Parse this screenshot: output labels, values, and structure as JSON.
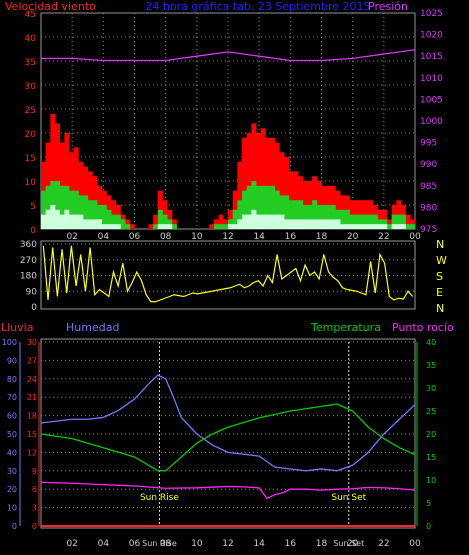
{
  "chart_data": [
    {
      "type": "bar",
      "title": "24 hora gráfica tab.  23 Septiembre 2015",
      "left_label": "Velocidad viento",
      "right_label": "Presión",
      "x_ticks": [
        "02",
        "04",
        "06",
        "08",
        "10",
        "12",
        "14",
        "16",
        "18",
        "20",
        "22",
        "00"
      ],
      "y_left_ticks": [
        "0",
        "5",
        "10",
        "15",
        "20",
        "25",
        "30",
        "35",
        "40",
        "45"
      ],
      "y_right_ticks": [
        "975",
        "980",
        "985",
        "990",
        "995",
        "1000",
        "1005",
        "1010",
        "1015",
        "1020",
        "1025"
      ],
      "ylim_left": [
        0,
        45
      ],
      "ylim_right": [
        975,
        1025
      ],
      "series": [
        {
          "role": "gust",
          "color": "#ff0000",
          "values": [
            14,
            18,
            24,
            22,
            18,
            20,
            16,
            17,
            14,
            13,
            12,
            11,
            9,
            8,
            7,
            6,
            5,
            3,
            2,
            1,
            0,
            0,
            0,
            1,
            3,
            8,
            6,
            4,
            2,
            0,
            0,
            0,
            0,
            0,
            0,
            0,
            1,
            2,
            3,
            2,
            4,
            8,
            14,
            19,
            20,
            22,
            20,
            21,
            19,
            19,
            18,
            16,
            15,
            12,
            12,
            11,
            10,
            10,
            11,
            10,
            9,
            9,
            9,
            8,
            7,
            7,
            6,
            6,
            6,
            6,
            6,
            5,
            4,
            4,
            2,
            5,
            6,
            5,
            3,
            2
          ]
        },
        {
          "role": "average",
          "color": "#22cc22",
          "values": [
            8,
            9,
            10,
            10,
            9,
            9,
            8,
            8,
            7,
            7,
            6,
            6,
            5,
            5,
            4,
            3,
            3,
            2,
            1,
            0,
            0,
            0,
            0,
            0,
            1,
            4,
            3,
            2,
            1,
            0,
            0,
            0,
            0,
            0,
            0,
            0,
            0,
            1,
            1,
            1,
            2,
            4,
            6,
            8,
            9,
            10,
            9,
            9,
            9,
            9,
            8,
            7,
            7,
            6,
            6,
            6,
            5,
            5,
            6,
            5,
            5,
            5,
            5,
            4,
            4,
            4,
            3,
            3,
            3,
            3,
            3,
            3,
            2,
            2,
            1,
            3,
            3,
            3,
            1,
            1
          ]
        },
        {
          "role": "base",
          "color": "#ccffdd",
          "values": [
            3,
            4,
            5,
            4,
            3,
            4,
            3,
            3,
            3,
            2,
            2,
            2,
            2,
            1,
            1,
            1,
            1,
            0,
            0,
            0,
            0,
            0,
            0,
            0,
            0,
            1,
            1,
            1,
            0,
            0,
            0,
            0,
            0,
            0,
            0,
            0,
            0,
            0,
            0,
            0,
            1,
            1,
            2,
            3,
            3,
            4,
            3,
            3,
            3,
            3,
            3,
            3,
            2,
            2,
            2,
            2,
            2,
            2,
            2,
            2,
            2,
            2,
            2,
            2,
            1,
            1,
            1,
            1,
            1,
            1,
            1,
            1,
            1,
            1,
            0,
            1,
            1,
            1,
            0,
            0
          ]
        },
        {
          "role": "pressure",
          "color": "#dd33ff",
          "axis": "right",
          "x": [
            0,
            2,
            4,
            6,
            8,
            10,
            12,
            14,
            16,
            18,
            20,
            22,
            24
          ],
          "values": [
            1014.5,
            1014.5,
            1014,
            1014,
            1014,
            1015,
            1016,
            1015,
            1014,
            1014,
            1014.5,
            1015.5,
            1016.5
          ]
        }
      ]
    },
    {
      "type": "line",
      "right_labels": [
        "N",
        "W",
        "S",
        "E",
        "N"
      ],
      "y_ticks": [
        "0",
        "90",
        "180",
        "270",
        "360"
      ],
      "ylim": [
        0,
        360
      ],
      "series": [
        {
          "role": "direction",
          "color": "#ffff00",
          "values": [
            350,
            40,
            340,
            60,
            330,
            80,
            350,
            120,
            300,
            90,
            340,
            70,
            100,
            80,
            60,
            200,
            120,
            250,
            90,
            140,
            200,
            150,
            70,
            30,
            30,
            40,
            50,
            60,
            70,
            65,
            60,
            70,
            80,
            75,
            80,
            85,
            90,
            95,
            100,
            105,
            110,
            120,
            130,
            110,
            120,
            140,
            150,
            120,
            180,
            140,
            300,
            160,
            180,
            200,
            220,
            150,
            240,
            180,
            200,
            160,
            300,
            200,
            170,
            150,
            110,
            100,
            95,
            90,
            80,
            70,
            260,
            80,
            300,
            250,
            60,
            40,
            50,
            45,
            90,
            60
          ]
        }
      ]
    },
    {
      "type": "line",
      "labels": {
        "rain": "Lluvia",
        "humidity": "Humedad",
        "temperature": "Temperatura",
        "dewpoint": "Punto rocío"
      },
      "x_ticks": [
        "02",
        "04",
        "06",
        "Sun Rise",
        "08",
        "10",
        "12",
        "14",
        "16",
        "18",
        "Sun Set",
        "20",
        "22",
        "00"
      ],
      "axis_humidity": {
        "ticks": [
          "0",
          "10",
          "20",
          "30",
          "40",
          "50",
          "60",
          "70",
          "80",
          "90",
          "100"
        ],
        "range": [
          0,
          100
        ]
      },
      "axis_rain": {
        "ticks": [
          "0",
          "3",
          "6",
          "9",
          "12",
          "15",
          "18",
          "21",
          "24",
          "27",
          "30"
        ],
        "range": [
          0,
          30
        ]
      },
      "axis_temp": {
        "ticks": [
          "0",
          "5",
          "10",
          "15",
          "20",
          "25",
          "30",
          "35",
          "40"
        ],
        "range": [
          0,
          40
        ]
      },
      "annotations": [
        "Sun Rise",
        "Sun Set"
      ],
      "sunrise_hour": 7.6,
      "sunset_hour": 19.75,
      "series": [
        {
          "role": "humidity",
          "color": "#7777ff",
          "x": [
            0,
            1,
            2,
            3,
            4,
            5,
            6,
            7,
            7.5,
            8,
            8.5,
            9,
            10,
            11,
            12,
            13,
            14,
            15,
            16,
            17,
            18,
            19,
            20,
            21,
            22,
            23,
            24
          ],
          "values": [
            56,
            57,
            58,
            58,
            59,
            63,
            69,
            78,
            82,
            80,
            70,
            59,
            50,
            44,
            40,
            39,
            38,
            32,
            31,
            30,
            31,
            30,
            33,
            40,
            50,
            58,
            66
          ]
        },
        {
          "role": "rain",
          "color": "#ff2222",
          "axis": "rain",
          "x": [
            0,
            24
          ],
          "values": [
            0,
            0
          ]
        },
        {
          "role": "temperature",
          "color": "#00cc00",
          "axis": "temp",
          "x": [
            0,
            2,
            4,
            6,
            7,
            7.5,
            8,
            9,
            10,
            11,
            12,
            13,
            14,
            16,
            18,
            19,
            20,
            21,
            22,
            23,
            24
          ],
          "values": [
            20,
            19,
            17,
            15,
            13,
            12,
            12,
            15,
            18,
            20,
            21.5,
            22.5,
            23.5,
            25,
            26,
            26.5,
            25,
            21.5,
            19,
            17,
            15.5
          ]
        },
        {
          "role": "dewpoint",
          "color": "#ff22ff",
          "axis": "temp",
          "x": [
            0,
            2,
            4,
            6,
            8,
            10,
            12,
            13,
            14,
            14.5,
            15,
            15.5,
            16,
            17,
            18,
            19,
            20,
            21,
            22,
            23,
            24
          ],
          "values": [
            9.5,
            9.3,
            9,
            8.7,
            8.2,
            8.3,
            8.6,
            8.5,
            8.3,
            6,
            6.8,
            7.2,
            8,
            8,
            7.8,
            8,
            8.1,
            8.4,
            8.3,
            8.1,
            7.8
          ]
        }
      ]
    }
  ]
}
